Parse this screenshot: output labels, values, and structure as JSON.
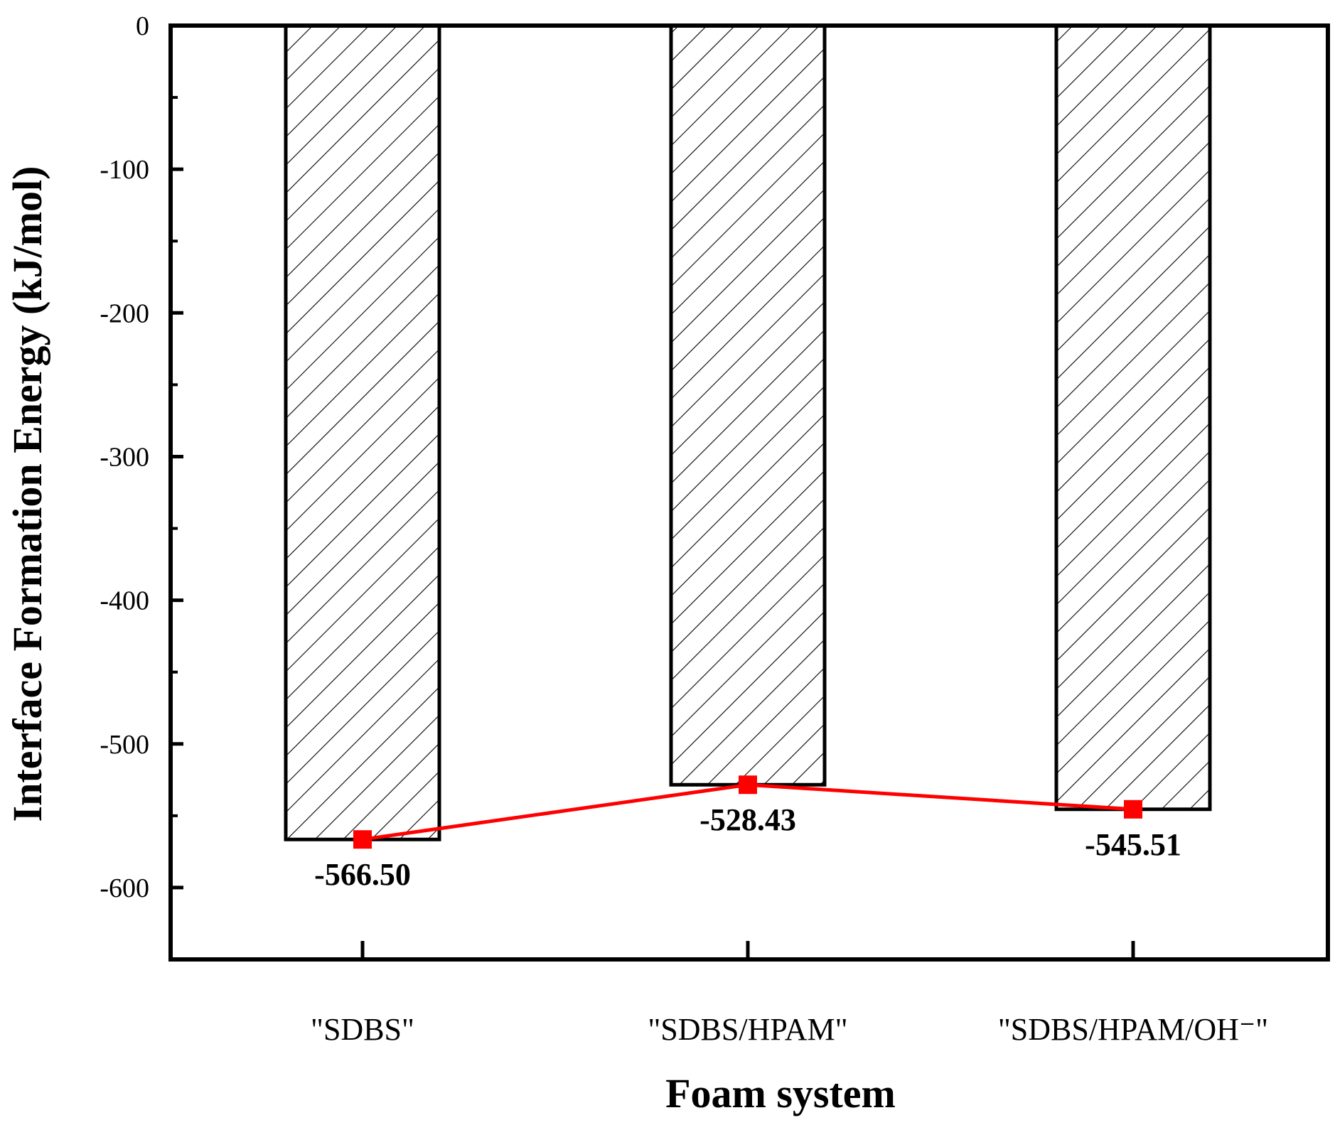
{
  "chart_data": {
    "type": "bar",
    "categories": [
      "\"SDBS\"",
      "\"SDBS/HPAM\"",
      "\"SDBS/HPAM/OH⁻\""
    ],
    "values": [
      -566.5,
      -528.43,
      -545.51
    ],
    "data_labels": [
      "-566.50",
      "-528.43",
      "-545.51"
    ],
    "overlay_line": {
      "values": [
        -566.5,
        -528.43,
        -545.51
      ],
      "marker": "square"
    },
    "xlabel": "Foam system",
    "ylabel": "Interface Formation Energy  (kJ/mol)",
    "ylim": [
      -650,
      0
    ],
    "yticks": [
      0,
      -100,
      -200,
      -300,
      -400,
      -500,
      -600
    ],
    "ytick_labels": [
      "0",
      "-100",
      "-200",
      "-300",
      "-400",
      "-500",
      "-600"
    ],
    "grid": false,
    "bar_fill": "diagonal-hatch",
    "colors": {
      "bar_stroke": "#000000",
      "line": "#ff0000",
      "marker": "#ff0000"
    }
  }
}
